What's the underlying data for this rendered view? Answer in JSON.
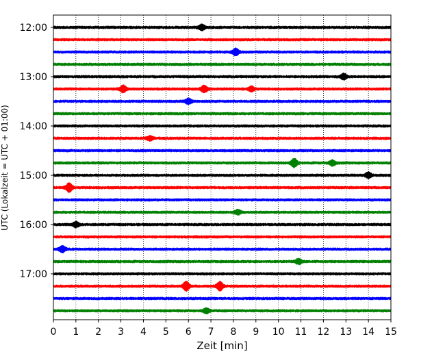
{
  "chart_data": {
    "type": "line",
    "subtype": "helicorder",
    "title": "",
    "xlabel": "Zeit  [min]",
    "ylabel": "UTC (Lokalzeit = UTC + 01:00)",
    "xlim": [
      0,
      15
    ],
    "x_ticks": [
      0,
      1,
      2,
      3,
      4,
      5,
      6,
      7,
      8,
      9,
      10,
      11,
      12,
      13,
      14,
      15
    ],
    "y_ticks": [
      "12:00",
      "13:00",
      "14:00",
      "15:00",
      "16:00",
      "17:00"
    ],
    "traces_per_hour": 4,
    "trace_count": 24,
    "start_time": "12:00",
    "grid": {
      "x": true,
      "y": false
    },
    "legend": "none",
    "trace_colors": [
      "#000000",
      "#ff0000",
      "#0000ff",
      "#008000"
    ],
    "events": [
      {
        "trace": 0,
        "x": 6.6,
        "amp": 1.4
      },
      {
        "trace": 2,
        "x": 8.1,
        "amp": 1.8
      },
      {
        "trace": 4,
        "x": 12.9,
        "amp": 1.6
      },
      {
        "trace": 5,
        "x": 3.1,
        "amp": 1.8
      },
      {
        "trace": 5,
        "x": 6.7,
        "amp": 1.8
      },
      {
        "trace": 5,
        "x": 8.8,
        "amp": 1.3
      },
      {
        "trace": 6,
        "x": 6.0,
        "amp": 1.4
      },
      {
        "trace": 9,
        "x": 4.3,
        "amp": 1.1
      },
      {
        "trace": 11,
        "x": 10.7,
        "amp": 2.2
      },
      {
        "trace": 11,
        "x": 12.4,
        "amp": 1.4
      },
      {
        "trace": 12,
        "x": 14.0,
        "amp": 1.4
      },
      {
        "trace": 13,
        "x": 0.7,
        "amp": 2.4
      },
      {
        "trace": 15,
        "x": 8.2,
        "amp": 1.2
      },
      {
        "trace": 16,
        "x": 1.0,
        "amp": 1.4
      },
      {
        "trace": 18,
        "x": 0.4,
        "amp": 1.6
      },
      {
        "trace": 19,
        "x": 10.9,
        "amp": 1.3
      },
      {
        "trace": 21,
        "x": 5.9,
        "amp": 2.4
      },
      {
        "trace": 21,
        "x": 7.4,
        "amp": 2.4
      },
      {
        "trace": 23,
        "x": 6.8,
        "amp": 1.3
      }
    ]
  }
}
